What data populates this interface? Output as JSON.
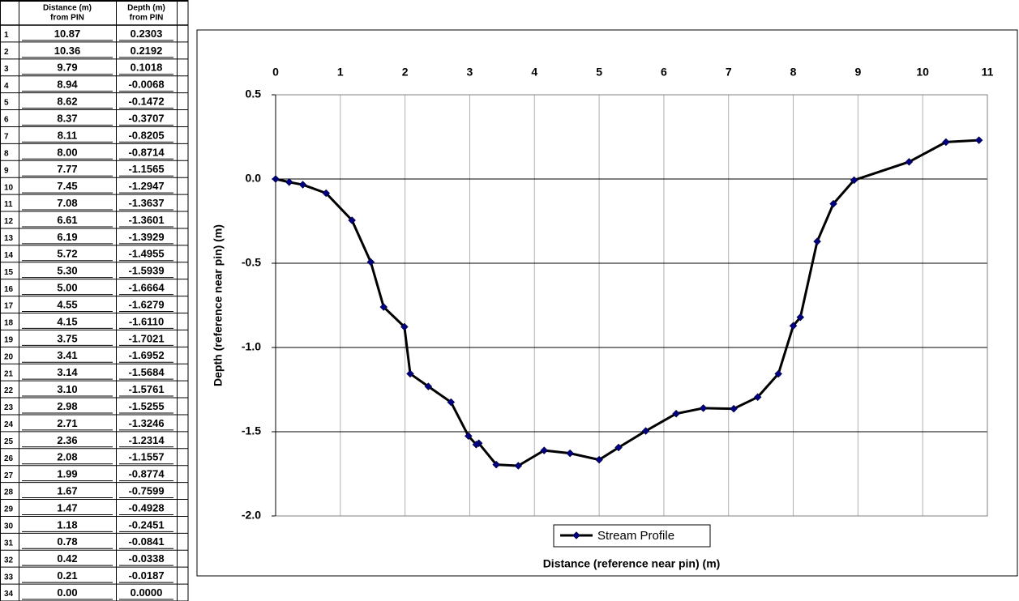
{
  "table": {
    "headers": [
      {
        "line1": "Distance (m)",
        "line2": "from PIN"
      },
      {
        "line1": "Depth (m)",
        "line2": "from PIN"
      }
    ],
    "rows": [
      [
        "1",
        "10.87",
        "0.2303"
      ],
      [
        "2",
        "10.36",
        "0.2192"
      ],
      [
        "3",
        "9.79",
        "0.1018"
      ],
      [
        "4",
        "8.94",
        "-0.0068"
      ],
      [
        "5",
        "8.62",
        "-0.1472"
      ],
      [
        "6",
        "8.37",
        "-0.3707"
      ],
      [
        "7",
        "8.11",
        "-0.8205"
      ],
      [
        "8",
        "8.00",
        "-0.8714"
      ],
      [
        "9",
        "7.77",
        "-1.1565"
      ],
      [
        "10",
        "7.45",
        "-1.2947"
      ],
      [
        "11",
        "7.08",
        "-1.3637"
      ],
      [
        "12",
        "6.61",
        "-1.3601"
      ],
      [
        "13",
        "6.19",
        "-1.3929"
      ],
      [
        "14",
        "5.72",
        "-1.4955"
      ],
      [
        "15",
        "5.30",
        "-1.5939"
      ],
      [
        "16",
        "5.00",
        "-1.6664"
      ],
      [
        "17",
        "4.55",
        "-1.6279"
      ],
      [
        "18",
        "4.15",
        "-1.6110"
      ],
      [
        "19",
        "3.75",
        "-1.7021"
      ],
      [
        "20",
        "3.41",
        "-1.6952"
      ],
      [
        "21",
        "3.14",
        "-1.5684"
      ],
      [
        "22",
        "3.10",
        "-1.5761"
      ],
      [
        "23",
        "2.98",
        "-1.5255"
      ],
      [
        "24",
        "2.71",
        "-1.3246"
      ],
      [
        "25",
        "2.36",
        "-1.2314"
      ],
      [
        "26",
        "2.08",
        "-1.1557"
      ],
      [
        "27",
        "1.99",
        "-0.8774"
      ],
      [
        "28",
        "1.67",
        "-0.7599"
      ],
      [
        "29",
        "1.47",
        "-0.4928"
      ],
      [
        "30",
        "1.18",
        "-0.2451"
      ],
      [
        "31",
        "0.78",
        "-0.0841"
      ],
      [
        "32",
        "0.42",
        "-0.0338"
      ],
      [
        "33",
        "0.21",
        "-0.0187"
      ],
      [
        "34",
        "0.00",
        "0.0000"
      ]
    ]
  },
  "chart_data": {
    "type": "line",
    "x_label": "Distance (reference near pin) (m)",
    "y_label": "Depth (reference near pin) (m)",
    "x": [
      10.87,
      10.36,
      9.79,
      8.94,
      8.62,
      8.37,
      8.11,
      8.0,
      7.77,
      7.45,
      7.08,
      6.61,
      6.19,
      5.72,
      5.3,
      5.0,
      4.55,
      4.15,
      3.75,
      3.41,
      3.14,
      3.1,
      2.98,
      2.71,
      2.36,
      2.08,
      1.99,
      1.67,
      1.47,
      1.18,
      0.78,
      0.42,
      0.21,
      0.0
    ],
    "series": [
      {
        "name": "Stream Profile",
        "color": "#000000",
        "marker_color": "#000080",
        "values": [
          0.2303,
          0.2192,
          0.1018,
          -0.0068,
          -0.1472,
          -0.3707,
          -0.8205,
          -0.8714,
          -1.1565,
          -1.2947,
          -1.3637,
          -1.3601,
          -1.3929,
          -1.4955,
          -1.5939,
          -1.6664,
          -1.6279,
          -1.611,
          -1.7021,
          -1.6952,
          -1.5684,
          -1.5761,
          -1.5255,
          -1.3246,
          -1.2314,
          -1.1557,
          -0.8774,
          -0.7599,
          -0.4928,
          -0.2451,
          -0.0841,
          -0.0338,
          -0.0187,
          0.0
        ]
      }
    ],
    "xlim": [
      0,
      11
    ],
    "xticks": [
      0,
      1,
      2,
      3,
      4,
      5,
      6,
      7,
      8,
      9,
      10,
      11
    ],
    "ylim": [
      -2,
      0.5
    ],
    "yticks": [
      0.5,
      {
        "value": 0,
        "label": "0.0"
      },
      -0.5,
      {
        "value": -1,
        "label": "-1.0"
      },
      -1.5,
      {
        "value": -2,
        "label": "-2.0"
      }
    ],
    "grid": true,
    "legend": "bottom",
    "x_axis_position": "top"
  }
}
